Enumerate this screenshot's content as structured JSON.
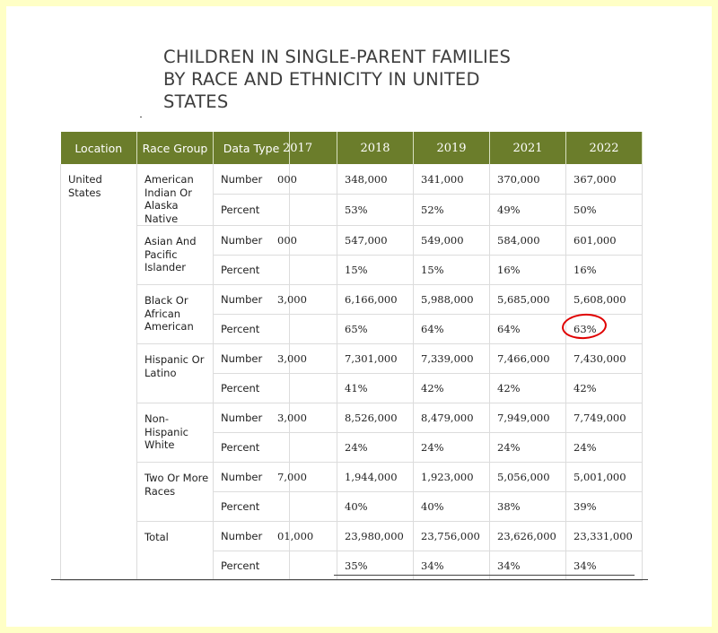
{
  "title_lines": [
    "CHILDREN IN SINGLE-PARENT FAMILIES",
    "BY RACE AND ETHNICITY IN UNITED",
    "STATES"
  ],
  "headers": {
    "location": "Location",
    "race_group": "Race Group",
    "data_type": "Data Type",
    "years": [
      "2017",
      "2018",
      "2019",
      "2021",
      "2022"
    ]
  },
  "location": "United States",
  "groups": [
    {
      "name": "American Indian Or Alaska Native",
      "number": [
        "000",
        "348,000",
        "341,000",
        "370,000",
        "367,000"
      ],
      "percent": [
        "",
        "53%",
        "52%",
        "49%",
        "50%"
      ]
    },
    {
      "name": "Asian And Pacific Islander",
      "number": [
        "000",
        "547,000",
        "549,000",
        "584,000",
        "601,000"
      ],
      "percent": [
        "",
        "15%",
        "15%",
        "16%",
        "16%"
      ]
    },
    {
      "name": "Black Or African American",
      "number": [
        "3,000",
        "6,166,000",
        "5,988,000",
        "5,685,000",
        "5,608,000"
      ],
      "percent": [
        "",
        "65%",
        "64%",
        "64%",
        "63%"
      ]
    },
    {
      "name": "Hispanic Or Latino",
      "number": [
        "3,000",
        "7,301,000",
        "7,339,000",
        "7,466,000",
        "7,430,000"
      ],
      "percent": [
        "",
        "41%",
        "42%",
        "42%",
        "42%"
      ]
    },
    {
      "name": "Non-Hispanic White",
      "number": [
        "3,000",
        "8,526,000",
        "8,479,000",
        "7,949,000",
        "7,749,000"
      ],
      "percent": [
        "",
        "24%",
        "24%",
        "24%",
        "24%"
      ]
    },
    {
      "name": "Two Or More Races",
      "number": [
        "7,000",
        "1,944,000",
        "1,923,000",
        "5,056,000",
        "5,001,000"
      ],
      "percent": [
        "",
        "40%",
        "40%",
        "38%",
        "39%"
      ]
    },
    {
      "name": "Total",
      "number": [
        "01,000",
        "23,980,000",
        "23,756,000",
        "23,626,000",
        "23,331,000"
      ],
      "percent": [
        "",
        "35%",
        "34%",
        "34%",
        "34%"
      ]
    }
  ],
  "labels": {
    "number": "Number",
    "percent": "Percent"
  },
  "highlight": {
    "group": 2,
    "row": "percent",
    "year_index": 4,
    "color": "#e00000"
  },
  "colors": {
    "header_bg": "#6b7d2b",
    "page_bg": "#ffffc6"
  }
}
